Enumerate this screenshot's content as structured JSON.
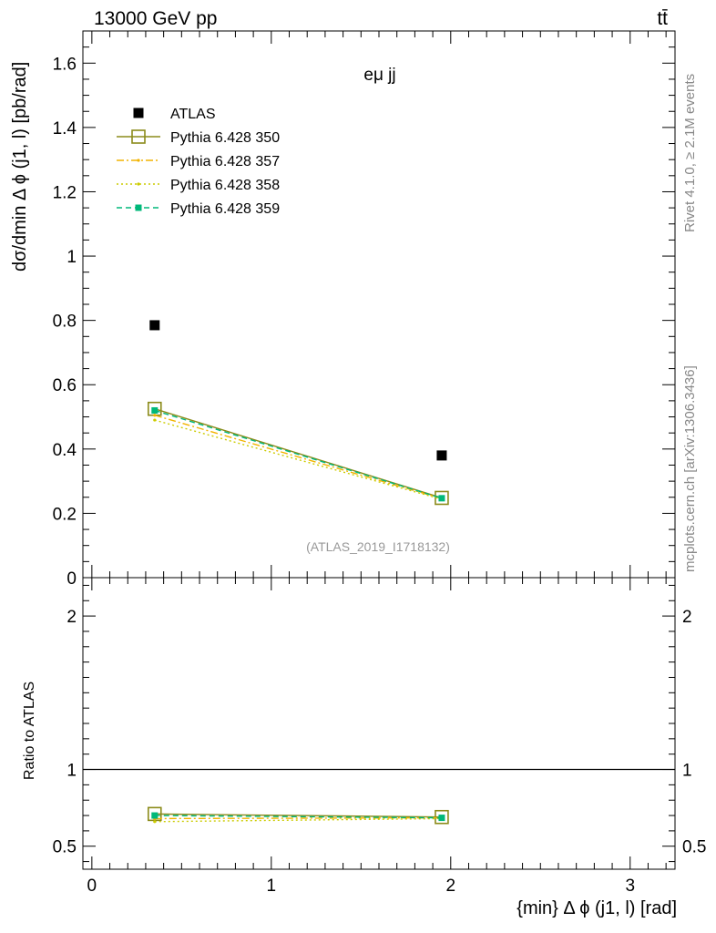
{
  "header": {
    "energy_label": "13000 GeV pp",
    "process_label": "tt̄"
  },
  "side_labels": {
    "rivet": "Rivet 4.1.0, ≥ 2.1M events",
    "source": "mcplots.cern.ch [arXiv:1306.3436]"
  },
  "chart_data": [
    {
      "type": "line",
      "panel": "main",
      "title": "eμ jj",
      "xlabel": "{min} Δ ϕ (j1, l) [rad]",
      "ylabel": "dσ/dmin Δ ϕ (j1, l) [pb/rad]",
      "watermark": "(ATLAS_2019_I1718132)",
      "xlim": [
        -0.05,
        3.25
      ],
      "ylim": [
        0,
        1.7
      ],
      "y_ticks": [
        0,
        0.2,
        0.4,
        0.6,
        0.8,
        1,
        1.2,
        1.4,
        1.6
      ],
      "y_tick_labels": [
        "0",
        "0.2",
        "0.4",
        "0.6",
        "0.8",
        "1",
        "1.2",
        "1.4",
        "1.6"
      ],
      "legend_position": "top-left",
      "x": [
        0.35,
        1.95
      ],
      "series": [
        {
          "name": "ATLAS",
          "values": [
            0.785,
            0.38
          ],
          "color": "#000000",
          "marker": "square",
          "style": "none"
        },
        {
          "name": "Pythia 6.428 350",
          "values": [
            0.525,
            0.248
          ],
          "color": "#8b8b1a",
          "marker": "open-square",
          "style": "solid"
        },
        {
          "name": "Pythia 6.428 357",
          "values": [
            0.505,
            0.246
          ],
          "color": "#f2b300",
          "marker": "dot",
          "style": "dashdot"
        },
        {
          "name": "Pythia 6.428 358",
          "values": [
            0.49,
            0.244
          ],
          "color": "#cccc00",
          "marker": "dot",
          "style": "dotted"
        },
        {
          "name": "Pythia 6.428 359",
          "values": [
            0.52,
            0.247
          ],
          "color": "#00b87a",
          "marker": "filled-square",
          "style": "dashed"
        }
      ]
    },
    {
      "type": "line",
      "panel": "ratio",
      "ylabel": "Ratio to ATLAS",
      "xlabel": "{min} Δ ϕ (j1, l) [rad]",
      "xlim": [
        -0.05,
        3.25
      ],
      "ylim": [
        0.35,
        2.25
      ],
      "y_ticks": [
        0.5,
        1,
        2
      ],
      "y_tick_labels": [
        "0.5",
        "1",
        "2"
      ],
      "x_ticks": [
        0,
        1,
        2,
        3
      ],
      "x_tick_labels": [
        "0",
        "1",
        "2",
        "3"
      ],
      "reference_line": 1,
      "x": [
        0.35,
        1.95
      ],
      "series": [
        {
          "name": "Pythia 6.428 350",
          "values": [
            0.71,
            0.69
          ],
          "color": "#8b8b1a"
        },
        {
          "name": "Pythia 6.428 357",
          "values": [
            0.68,
            0.685
          ],
          "color": "#f2b300"
        },
        {
          "name": "Pythia 6.428 358",
          "values": [
            0.66,
            0.68
          ],
          "color": "#cccc00"
        },
        {
          "name": "Pythia 6.428 359",
          "values": [
            0.7,
            0.685
          ],
          "color": "#00b87a"
        }
      ]
    }
  ]
}
